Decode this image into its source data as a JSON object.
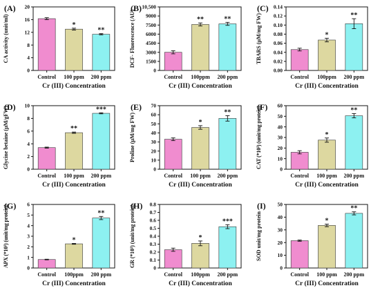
{
  "colors": {
    "control": "#f08ccf",
    "low": "#ddd8a0",
    "high": "#8df1f1"
  },
  "chart_data": [
    {
      "panel": "(A)",
      "type": "bar",
      "categories": [
        "Control",
        "100 ppm",
        "200 ppm"
      ],
      "values": [
        16.3,
        13.0,
        11.4
      ],
      "errors": [
        0.3,
        0.3,
        0.2
      ],
      "significance": [
        "",
        "*",
        "**"
      ],
      "ylabel": "CA activity (unit/ml)",
      "xlabel": "Cr (III) Concentration",
      "ylim": [
        0,
        20
      ],
      "yticks": [
        0,
        4,
        8,
        12,
        16,
        20
      ],
      "ytick_labels": [
        "0",
        "4",
        "8",
        "12",
        "16",
        "20"
      ]
    },
    {
      "panel": "(B)",
      "type": "bar",
      "categories": [
        "Control",
        "100ppm",
        "200 ppm"
      ],
      "values": [
        3000,
        7600,
        7700
      ],
      "errors": [
        250,
        250,
        250
      ],
      "significance": [
        "",
        "**",
        "**"
      ],
      "ylabel": "DCF- Fluorescence (AU)",
      "xlabel": "Cr (III) Concentration",
      "ylim": [
        0,
        10500
      ],
      "yticks": [
        0,
        1500,
        3000,
        4500,
        6000,
        7500,
        9000,
        10500
      ],
      "ytick_labels": [
        "0",
        "1500",
        "3000",
        "4500",
        "6000",
        "7500",
        "9000",
        "10,500"
      ]
    },
    {
      "panel": "(C)",
      "type": "bar",
      "categories": [
        "Control",
        "100ppm",
        "200 ppm"
      ],
      "values": [
        0.046,
        0.067,
        0.103
      ],
      "errors": [
        0.003,
        0.004,
        0.011
      ],
      "significance": [
        "",
        "*",
        "**"
      ],
      "ylabel": "TBARS (µM/mg FW)",
      "xlabel": "Cr (III) Concentration",
      "ylim": [
        0,
        0.14
      ],
      "yticks": [
        0,
        0.02,
        0.04,
        0.06,
        0.08,
        0.1,
        0.12,
        0.14
      ],
      "ytick_labels": [
        "0.00",
        "0.02",
        "0.04",
        "0.06",
        "0.08",
        "0.10",
        "0.12",
        "0.14"
      ]
    },
    {
      "panel": "(D)",
      "type": "bar",
      "categories": [
        "Control",
        "100 ppm",
        "200 ppm"
      ],
      "values": [
        3.4,
        5.75,
        8.8
      ],
      "errors": [
        0.08,
        0.1,
        0.08
      ],
      "significance": [
        "",
        "**",
        "***"
      ],
      "ylabel": "Glycine betaine (µM/gFW)",
      "xlabel": "Cr (III) Concentration",
      "ylim": [
        0,
        10
      ],
      "yticks": [
        0,
        2,
        4,
        6,
        8,
        10
      ],
      "ytick_labels": [
        "0",
        "2",
        "4",
        "6",
        "8",
        "10"
      ]
    },
    {
      "panel": "(E)",
      "type": "bar",
      "categories": [
        "Control",
        "100 ppm",
        "200 ppm"
      ],
      "values": [
        33,
        46,
        56
      ],
      "errors": [
        1.5,
        2,
        3
      ],
      "significance": [
        "",
        "*",
        "**"
      ],
      "ylabel": "Proline (µM/mg FW)",
      "xlabel": "Cr (III) Concentration",
      "ylim": [
        0,
        70
      ],
      "yticks": [
        0,
        10,
        20,
        30,
        40,
        50,
        60,
        70
      ],
      "ytick_labels": [
        "0",
        "10",
        "20",
        "30",
        "40",
        "50",
        "60",
        "70"
      ]
    },
    {
      "panel": "(F)",
      "type": "bar",
      "categories": [
        "Control",
        "100 ppm",
        "200 ppm"
      ],
      "values": [
        16,
        27.5,
        50.5
      ],
      "errors": [
        1.5,
        2,
        2
      ],
      "significance": [
        "",
        "*",
        "**"
      ],
      "ylabel": "CAT (*10³) (unit/mg protein)",
      "xlabel": "Cr (III) Concentration",
      "ylim": [
        0,
        60
      ],
      "yticks": [
        0,
        10,
        20,
        30,
        40,
        50,
        60
      ],
      "ytick_labels": [
        "0",
        "10",
        "20",
        "30",
        "40",
        "50",
        "60"
      ]
    },
    {
      "panel": "(G)",
      "type": "bar",
      "categories": [
        "Control",
        "100ppm",
        "200 ppm"
      ],
      "values": [
        0.8,
        2.28,
        4.72
      ],
      "errors": [
        0.03,
        0.04,
        0.15
      ],
      "significance": [
        "",
        "*",
        "**"
      ],
      "ylabel": "APX (*10³) (unit/mg protein)",
      "xlabel": "Cr (III) Concentration",
      "ylim": [
        0,
        6
      ],
      "yticks": [
        0,
        1,
        2,
        3,
        4,
        5,
        6
      ],
      "ytick_labels": [
        "0",
        "1",
        "2",
        "3",
        "4",
        "5",
        "6"
      ]
    },
    {
      "panel": "(H)",
      "type": "bar",
      "categories": [
        "Control",
        "100ppm",
        "200 ppm"
      ],
      "values": [
        0.23,
        0.31,
        0.52
      ],
      "errors": [
        0.02,
        0.03,
        0.025
      ],
      "significance": [
        "",
        "*",
        "***"
      ],
      "ylabel": "GR (*10³) (unit/mg protein)",
      "xlabel": "Cr (III) Concentration",
      "ylim": [
        0,
        0.8
      ],
      "yticks": [
        0,
        0.1,
        0.2,
        0.3,
        0.4,
        0.5,
        0.6,
        0.7,
        0.8
      ],
      "ytick_labels": [
        "0",
        "0.1",
        "0.2",
        "0.3",
        "0.4",
        "0.5",
        "0.6",
        "0.7",
        "0.8"
      ]
    },
    {
      "panel": "(I)",
      "type": "bar",
      "categories": [
        "Control",
        "100 ppm",
        "200 ppm"
      ],
      "values": [
        21.5,
        33.5,
        43
      ],
      "errors": [
        0.5,
        1,
        1.2
      ],
      "significance": [
        "",
        "*",
        "**"
      ],
      "ylabel": "SOD unit/mg protein",
      "xlabel": "Cr (III) Concentration",
      "ylim": [
        0,
        50
      ],
      "yticks": [
        0,
        10,
        20,
        30,
        40,
        50
      ],
      "ytick_labels": [
        "0",
        "10",
        "20",
        "30",
        "40",
        "50"
      ]
    }
  ]
}
